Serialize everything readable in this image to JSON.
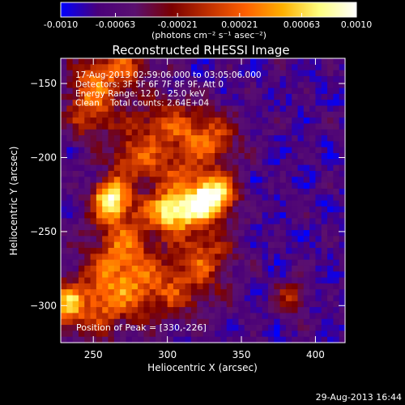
{
  "colorbar": {
    "tick_labels": [
      "-0.0010",
      "-0.00063",
      "-0.00021",
      "0.00021",
      "0.00063",
      "0.0010"
    ],
    "tick_values": [
      -0.001,
      -0.00063,
      -0.00021,
      0.00021,
      0.00063,
      0.001
    ],
    "range": [
      -0.001,
      0.001
    ],
    "units_label": "(photons cm⁻² s⁻¹ asec⁻²)",
    "colormap": [
      "#0000ff",
      "#4a007a",
      "#5a1070",
      "#7a0000",
      "#c03000",
      "#ff6000",
      "#ffb000",
      "#ffff80",
      "#ffffff"
    ]
  },
  "chart_data": {
    "type": "heatmap",
    "title": "Reconstructed RHESSI Image",
    "xlabel": "Heliocentric X (arcsec)",
    "ylabel": "Heliocentric Y (arcsec)",
    "xlim": [
      228,
      420
    ],
    "ylim": [
      -325,
      -133
    ],
    "x_ticks": [
      250,
      300,
      350,
      400
    ],
    "y_ticks": [
      -150,
      -200,
      -250,
      -300
    ],
    "x_tick_labels": [
      "250",
      "300",
      "350",
      "400"
    ],
    "y_tick_labels": [
      "−150",
      "−200",
      "−250",
      "−300"
    ],
    "annotations": [
      "17-Aug-2013 02:59:06.000 to 03:05:06.000",
      "Detectors: 3F 5F 6F 7F 8F 9F, Att 0",
      "Energy Range: 12.0 - 25.0 keV",
      "Clean    Total counts: 2.64E+04"
    ],
    "peak_label": "Position of Peak = [330,-226]",
    "peak": [
      330,
      -226
    ],
    "emission_blobs": [
      {
        "x": 330,
        "y": -226,
        "amp": 1.0,
        "sx": 11,
        "sy": 10
      },
      {
        "x": 305,
        "y": -236,
        "amp": 0.9,
        "sx": 13,
        "sy": 10
      },
      {
        "x": 262,
        "y": -228,
        "amp": 0.9,
        "sx": 9,
        "sy": 10
      },
      {
        "x": 248,
        "y": -160,
        "amp": 0.55,
        "sx": 12,
        "sy": 18
      },
      {
        "x": 270,
        "y": -140,
        "amp": 0.45,
        "sx": 14,
        "sy": 10
      },
      {
        "x": 300,
        "y": -180,
        "amp": 0.45,
        "sx": 22,
        "sy": 14
      },
      {
        "x": 330,
        "y": -190,
        "amp": 0.4,
        "sx": 14,
        "sy": 12
      },
      {
        "x": 270,
        "y": -265,
        "amp": 0.55,
        "sx": 16,
        "sy": 20
      },
      {
        "x": 300,
        "y": -290,
        "amp": 0.4,
        "sx": 22,
        "sy": 14
      },
      {
        "x": 250,
        "y": -300,
        "amp": 0.45,
        "sx": 18,
        "sy": 16
      },
      {
        "x": 325,
        "y": -265,
        "amp": 0.42,
        "sx": 14,
        "sy": 14
      },
      {
        "x": 300,
        "y": -210,
        "amp": 0.35,
        "sx": 14,
        "sy": 10
      },
      {
        "x": 275,
        "y": -200,
        "amp": 0.35,
        "sx": 10,
        "sy": 10
      },
      {
        "x": 383,
        "y": -295,
        "amp": 0.35,
        "sx": 8,
        "sy": 8
      },
      {
        "x": 232,
        "y": -300,
        "amp": 0.5,
        "sx": 6,
        "sy": 10
      }
    ],
    "background_level": -0.3
  },
  "footer": {
    "timestamp": "29-Aug-2013 16:44"
  }
}
